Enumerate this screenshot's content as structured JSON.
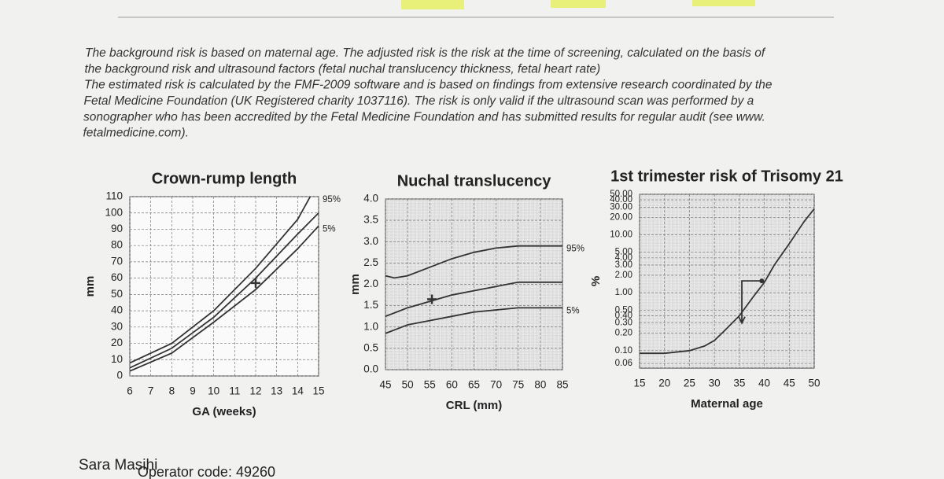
{
  "text": {
    "lines": [
      "The background risk is based on maternal age. The adjusted risk is the risk at the time of screening, calculated on the basis of",
      "the background risk and ultrasound factors (fetal nuchal translucency thickness, fetal heart rate)",
      "The estimated risk is calculated by the FMF-2009 software and is based on findings from extensive research coordinated by the",
      "Fetal Medicine Foundation (UK Registered charity 1037116). The risk is only valid if the ultrasound scan was performed by a",
      "sonographer who has been accredited by the Fetal Medicine Foundation and has submitted results for regular audit (see www.",
      "fetalmedicine.com)."
    ]
  },
  "chart_data": [
    {
      "type": "line",
      "title": "Crown-rump length",
      "xlabel": "GA (weeks)",
      "ylabel": "mm",
      "grid": true,
      "xlim": [
        6,
        15
      ],
      "xticks": [
        6,
        7,
        8,
        9,
        10,
        11,
        12,
        13,
        14,
        15
      ],
      "ylim": [
        0,
        110
      ],
      "yticks": [
        0,
        10,
        20,
        30,
        40,
        50,
        60,
        70,
        80,
        90,
        100,
        110
      ],
      "series": [
        {
          "name": "95%",
          "color": "#333333",
          "x": [
            6,
            8,
            10,
            12,
            14,
            14.6
          ],
          "values": [
            8,
            20,
            40,
            66,
            96,
            110
          ]
        },
        {
          "color": "#333333",
          "x": [
            6,
            8,
            10,
            12,
            14,
            15
          ],
          "values": [
            5,
            17,
            36,
            60,
            87,
            100
          ]
        },
        {
          "name": "5%",
          "color": "#333333",
          "x": [
            6,
            8,
            10,
            12,
            14,
            15
          ],
          "values": [
            3,
            14,
            33,
            53,
            78,
            92
          ]
        },
        {
          "color": "#333333",
          "marker": "cross",
          "x": [
            12
          ],
          "values": [
            57
          ]
        }
      ]
    },
    {
      "type": "line",
      "title": "Nuchal translucency",
      "xlabel": "CRL (mm)",
      "ylabel": "mm",
      "grid": true,
      "xlim": [
        45,
        85
      ],
      "xticks": [
        45,
        50,
        55,
        60,
        65,
        70,
        75,
        80,
        85
      ],
      "ylim": [
        0,
        4
      ],
      "yticks": [
        {
          "value": 0,
          "label": "0.0"
        },
        0.5,
        {
          "value": 1,
          "label": "1.0"
        },
        1.5,
        {
          "value": 2,
          "label": "2.0"
        },
        2.5,
        {
          "value": 3,
          "label": "3.0"
        },
        3.5,
        {
          "value": 4,
          "label": "4.0"
        }
      ],
      "series": [
        {
          "name": "95%",
          "color": "#333333",
          "x": [
            45,
            47,
            50,
            55,
            60,
            65,
            70,
            75,
            85
          ],
          "values": [
            2.2,
            2.15,
            2.2,
            2.4,
            2.6,
            2.75,
            2.85,
            2.9,
            2.9
          ]
        },
        {
          "color": "#333333",
          "x": [
            45,
            50,
            55,
            60,
            65,
            70,
            75,
            85
          ],
          "values": [
            1.25,
            1.45,
            1.6,
            1.75,
            1.85,
            1.95,
            2.05,
            2.05
          ]
        },
        {
          "name": "5%",
          "color": "#333333",
          "x": [
            45,
            50,
            55,
            60,
            65,
            70,
            75,
            85
          ],
          "values": [
            0.85,
            1.05,
            1.15,
            1.25,
            1.35,
            1.4,
            1.45,
            1.45
          ]
        },
        {
          "color": "#333333",
          "marker": "cross",
          "x": [
            55.5
          ],
          "values": [
            1.65
          ]
        }
      ]
    },
    {
      "type": "line",
      "title": "1st trimester risk of Trisomy 21",
      "xlabel": "Maternal age",
      "ylabel": "%",
      "grid": true,
      "ylog": true,
      "xlim": [
        15,
        50
      ],
      "xticks": [
        15,
        20,
        25,
        30,
        35,
        40,
        45,
        50
      ],
      "ylim": [
        0.05,
        50
      ],
      "yticks": [
        {
          "value": 0.06,
          "label": "0.06"
        },
        {
          "value": 0.1,
          "label": "0.10"
        },
        {
          "value": 0.2,
          "label": "0.20"
        },
        {
          "value": 0.3,
          "label": "0.30"
        },
        {
          "value": 0.4,
          "label": "0.40"
        },
        {
          "value": 0.5,
          "label": "0.50"
        },
        {
          "value": 1,
          "label": "1.00"
        },
        {
          "value": 2,
          "label": "2.00"
        },
        {
          "value": 3,
          "label": "3.00"
        },
        {
          "value": 4,
          "label": "4.00"
        },
        {
          "value": 5,
          "label": "5.00"
        },
        {
          "value": 10,
          "label": "10.00"
        },
        {
          "value": 20,
          "label": "20.00"
        },
        {
          "value": 30,
          "label": "30.00"
        },
        {
          "value": 40,
          "label": "40.00"
        },
        {
          "value": 50,
          "label": "50.00"
        }
      ],
      "series": [
        {
          "color": "#333333",
          "x": [
            15,
            20,
            25,
            28,
            30,
            32,
            35,
            38,
            40,
            42,
            45,
            48,
            50
          ],
          "values": [
            0.09,
            0.09,
            0.1,
            0.12,
            0.15,
            0.22,
            0.4,
            0.9,
            1.5,
            3,
            7,
            17,
            28
          ]
        },
        {
          "color": "#333333",
          "marker": "arrow",
          "x": [
            39.5,
            35.5,
            35.5
          ],
          "values": [
            1.6,
            1.6,
            0.3
          ]
        }
      ]
    }
  ],
  "footer": {
    "name": "Sara Masihi",
    "operator": "Operator code: 49260"
  }
}
